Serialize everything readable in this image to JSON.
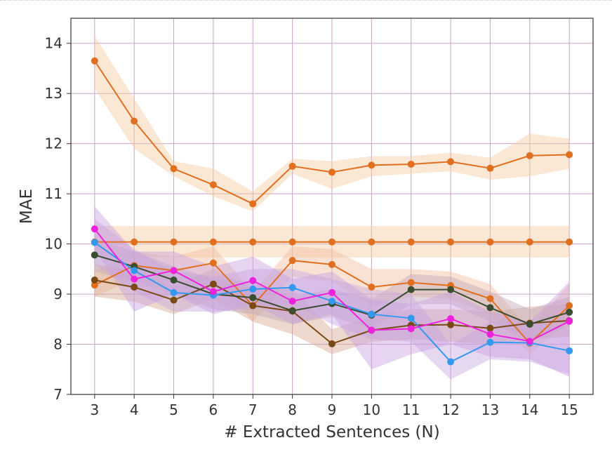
{
  "chart_data": {
    "type": "line",
    "xlabel": "# Extracted Sentences (N)",
    "ylabel": "MAE",
    "xlim": [
      2.4,
      15.6
    ],
    "ylim": [
      7,
      14.5
    ],
    "x_ticks": [
      3,
      4,
      5,
      6,
      7,
      8,
      9,
      10,
      11,
      12,
      13,
      14,
      15
    ],
    "y_ticks": [
      7,
      8,
      9,
      10,
      11,
      12,
      13,
      14
    ],
    "grid": true,
    "legend": "none",
    "x": [
      3,
      4,
      5,
      6,
      7,
      8,
      9,
      10,
      11,
      12,
      13,
      14,
      15
    ],
    "series": [
      {
        "color": "#e07020",
        "band_color": "#f5c9a0",
        "values": [
          13.65,
          12.45,
          11.5,
          11.18,
          10.8,
          11.55,
          11.43,
          11.57,
          11.59,
          11.64,
          11.51,
          11.76,
          11.78
        ],
        "lower": [
          13.1,
          11.9,
          11.35,
          10.95,
          10.65,
          11.4,
          11.1,
          11.35,
          11.4,
          11.45,
          11.28,
          11.35,
          11.5
        ],
        "upper": [
          14.15,
          12.9,
          11.65,
          11.5,
          11.05,
          11.7,
          11.65,
          11.75,
          11.75,
          11.82,
          11.72,
          12.2,
          12.1
        ]
      },
      {
        "color": "#e07020",
        "band_color": "#f5c9a0",
        "values": [
          10.04,
          10.04,
          10.04,
          10.04,
          10.04,
          10.04,
          10.04,
          10.04,
          10.04,
          10.04,
          10.04,
          10.04,
          10.04
        ],
        "lower": [
          9.73,
          9.73,
          9.73,
          9.73,
          9.73,
          9.73,
          9.73,
          9.73,
          9.73,
          9.73,
          9.73,
          9.73,
          9.73
        ],
        "upper": [
          10.36,
          10.36,
          10.36,
          10.36,
          10.36,
          10.36,
          10.36,
          10.36,
          10.36,
          10.36,
          10.36,
          10.36,
          10.36
        ]
      },
      {
        "color": "#e07020",
        "band_color": "#f2bfa0",
        "values": [
          9.18,
          9.57,
          9.47,
          9.62,
          8.77,
          9.67,
          9.59,
          9.14,
          9.23,
          9.17,
          8.91,
          8.02,
          8.77
        ],
        "lower": [
          8.95,
          9.3,
          9.2,
          9.3,
          8.45,
          9.35,
          9.25,
          8.75,
          8.95,
          8.9,
          8.6,
          7.8,
          8.45
        ],
        "upper": [
          9.45,
          9.85,
          9.75,
          9.95,
          9.05,
          9.95,
          9.9,
          9.5,
          9.5,
          9.45,
          9.2,
          8.3,
          9.2
        ]
      },
      {
        "color": "#7a4a16",
        "band_color": "#d8a890",
        "values": [
          9.28,
          9.14,
          8.88,
          9.2,
          8.77,
          8.66,
          8.01,
          8.28,
          8.38,
          8.39,
          8.32,
          8.42,
          8.47
        ],
        "lower": [
          8.95,
          8.85,
          8.6,
          8.9,
          8.45,
          8.2,
          7.8,
          8.05,
          8.1,
          8.05,
          8.0,
          8.1,
          8.15
        ],
        "upper": [
          9.6,
          9.45,
          9.15,
          9.5,
          9.1,
          9.1,
          8.3,
          8.55,
          8.7,
          8.7,
          8.65,
          8.75,
          8.8
        ]
      },
      {
        "color": "#3a4d2e",
        "band_color": "#c0a8b8",
        "values": [
          9.78,
          9.55,
          9.28,
          9.0,
          8.93,
          8.67,
          8.81,
          8.58,
          9.09,
          9.09,
          8.73,
          8.4,
          8.64
        ],
        "lower": [
          9.45,
          9.25,
          9.0,
          8.7,
          8.6,
          8.4,
          8.55,
          8.3,
          8.8,
          8.8,
          8.45,
          8.1,
          8.35
        ],
        "upper": [
          10.1,
          9.85,
          9.55,
          9.3,
          9.25,
          8.95,
          9.1,
          8.9,
          9.4,
          9.35,
          9.05,
          8.7,
          8.95
        ]
      },
      {
        "color": "#3399ee",
        "band_color": "#c8a8e0",
        "values": [
          10.03,
          9.47,
          9.03,
          8.98,
          9.1,
          9.13,
          8.86,
          8.6,
          8.52,
          7.65,
          8.04,
          8.03,
          7.87
        ],
        "lower": [
          9.6,
          9.05,
          8.65,
          8.65,
          8.7,
          8.8,
          8.4,
          8.1,
          8.05,
          7.3,
          7.7,
          7.65,
          7.4
        ],
        "upper": [
          10.5,
          9.9,
          9.45,
          9.35,
          9.5,
          9.5,
          9.3,
          9.1,
          9.0,
          8.0,
          8.45,
          8.45,
          8.3
        ]
      },
      {
        "color": "#ee22dd",
        "band_color": "#c8a0e0",
        "values": [
          10.3,
          9.3,
          9.47,
          9.05,
          9.27,
          8.86,
          9.03,
          8.28,
          8.31,
          8.51,
          8.2,
          8.06,
          8.46
        ],
        "lower": [
          9.9,
          8.65,
          9.0,
          8.6,
          8.8,
          8.4,
          8.6,
          7.5,
          7.8,
          8.0,
          7.75,
          7.7,
          7.35
        ],
        "upper": [
          10.75,
          9.85,
          9.85,
          9.55,
          9.75,
          9.3,
          9.45,
          8.9,
          8.8,
          9.05,
          8.65,
          8.45,
          9.25
        ]
      }
    ]
  }
}
